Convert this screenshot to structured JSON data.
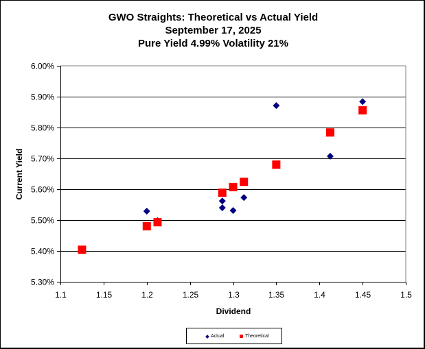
{
  "chart_data": {
    "type": "scatter",
    "title": "GWO Straights: Theoretical vs Actual Yield",
    "subtitle_lines": [
      "September 17, 2025",
      "Pure Yield 4.99% Volatility 21%"
    ],
    "xlabel": "Dividend",
    "ylabel": "Current Yield",
    "xlim": [
      1.1,
      1.5
    ],
    "ylim": [
      5.3,
      6.0
    ],
    "x_ticks": [
      1.1,
      1.15,
      1.2,
      1.25,
      1.3,
      1.35,
      1.4,
      1.45,
      1.5
    ],
    "x_tick_labels": [
      "1.1",
      "1.15",
      "1.2",
      "1.25",
      "1.3",
      "1.35",
      "1.4",
      "1.45",
      "1.5"
    ],
    "y_ticks": [
      5.3,
      5.4,
      5.5,
      5.6,
      5.7,
      5.8,
      5.9,
      6.0
    ],
    "y_tick_labels": [
      "5.30%",
      "5.40%",
      "5.50%",
      "5.60%",
      "5.70%",
      "5.80%",
      "5.90%",
      "6.00%"
    ],
    "grid": "horizontal",
    "legend_position": "bottom-center",
    "series": [
      {
        "name": "Actual",
        "marker": "diamond",
        "color": "#000080",
        "points": [
          {
            "x": 1.125,
            "y": 5.404
          },
          {
            "x": 1.2,
            "y": 5.529
          },
          {
            "x": 1.2125,
            "y": 5.498
          },
          {
            "x": 1.2875,
            "y": 5.562
          },
          {
            "x": 1.2875,
            "y": 5.54
          },
          {
            "x": 1.3,
            "y": 5.531
          },
          {
            "x": 1.3125,
            "y": 5.573
          },
          {
            "x": 1.35,
            "y": 5.871
          },
          {
            "x": 1.4125,
            "y": 5.707
          },
          {
            "x": 1.45,
            "y": 5.884
          }
        ]
      },
      {
        "name": "Theoretical",
        "marker": "square",
        "color": "#ff0000",
        "points": [
          {
            "x": 1.125,
            "y": 5.404
          },
          {
            "x": 1.2,
            "y": 5.48
          },
          {
            "x": 1.2125,
            "y": 5.493
          },
          {
            "x": 1.2875,
            "y": 5.589
          },
          {
            "x": 1.3,
            "y": 5.607
          },
          {
            "x": 1.3125,
            "y": 5.624
          },
          {
            "x": 1.35,
            "y": 5.68
          },
          {
            "x": 1.4125,
            "y": 5.784
          },
          {
            "x": 1.45,
            "y": 5.856
          }
        ]
      }
    ]
  }
}
